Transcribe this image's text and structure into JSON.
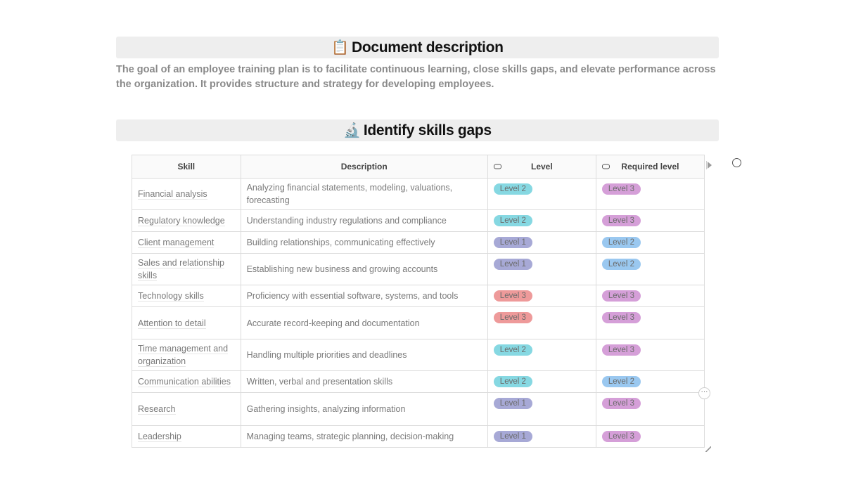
{
  "doc_section": {
    "emoji": "📋",
    "title": "Document description",
    "description": "The goal of an employee training plan is to facilitate continuous learning, close skills gaps, and elevate performance across the organization. It provides structure and strategy for developing employees."
  },
  "skills_section": {
    "emoji": "🔬",
    "title": "Identify skills gaps"
  },
  "table": {
    "headers": {
      "skill": "Skill",
      "description": "Description",
      "level": "Level",
      "required_level": "Required level"
    },
    "rows": [
      {
        "skill": "Financial analysis",
        "description": "Analyzing financial statements, modeling, valuations, forecasting",
        "level": "Level 2",
        "required": "Level 3"
      },
      {
        "skill": "Regulatory knowledge",
        "description": "Understanding industry regulations and compliance",
        "level": "Level 2",
        "required": "Level 3"
      },
      {
        "skill": "Client management",
        "description": "Building relationships, communicating effectively",
        "level": "Level 1",
        "required": "Level 2"
      },
      {
        "skill": "Sales and relationship skills",
        "description": "Establishing new business and growing accounts",
        "level": "Level 1",
        "required": "Level 2"
      },
      {
        "skill": "Technology skills",
        "description": "Proficiency with essential software, systems, and tools",
        "level": "Level 3",
        "required": "Level 3"
      },
      {
        "skill": "Attention to detail",
        "description": "Accurate record-keeping and documentation",
        "level": "Level 3",
        "required": "Level 3"
      },
      {
        "skill": "Time management and organization",
        "description": "Handling multiple priorities and deadlines",
        "level": "Level 2",
        "required": "Level 3"
      },
      {
        "skill": "Communication abilities",
        "description": "Written, verbal and presentation skills",
        "level": "Level 2",
        "required": "Level 2"
      },
      {
        "skill": "Research",
        "description": "Gathering insights, analyzing information",
        "level": "Level 1",
        "required": "Level 3"
      },
      {
        "skill": "Leadership",
        "description": "Managing teams, strategic planning, decision-making",
        "level": "Level 1",
        "required": "Level 3"
      }
    ]
  },
  "colors": {
    "level_1": "#a7a9d6",
    "level_2": "#86d8e2",
    "level_3_current": "#ee9a9a",
    "level_2_required": "#9ac8f0",
    "level_3_required": "#d59fd8"
  },
  "icons": {
    "comment": "comment-icon",
    "more": "more-options-icon",
    "expand": "expand-arrow-icon",
    "resize": "resize-handle-icon"
  },
  "more_button_label": "···"
}
